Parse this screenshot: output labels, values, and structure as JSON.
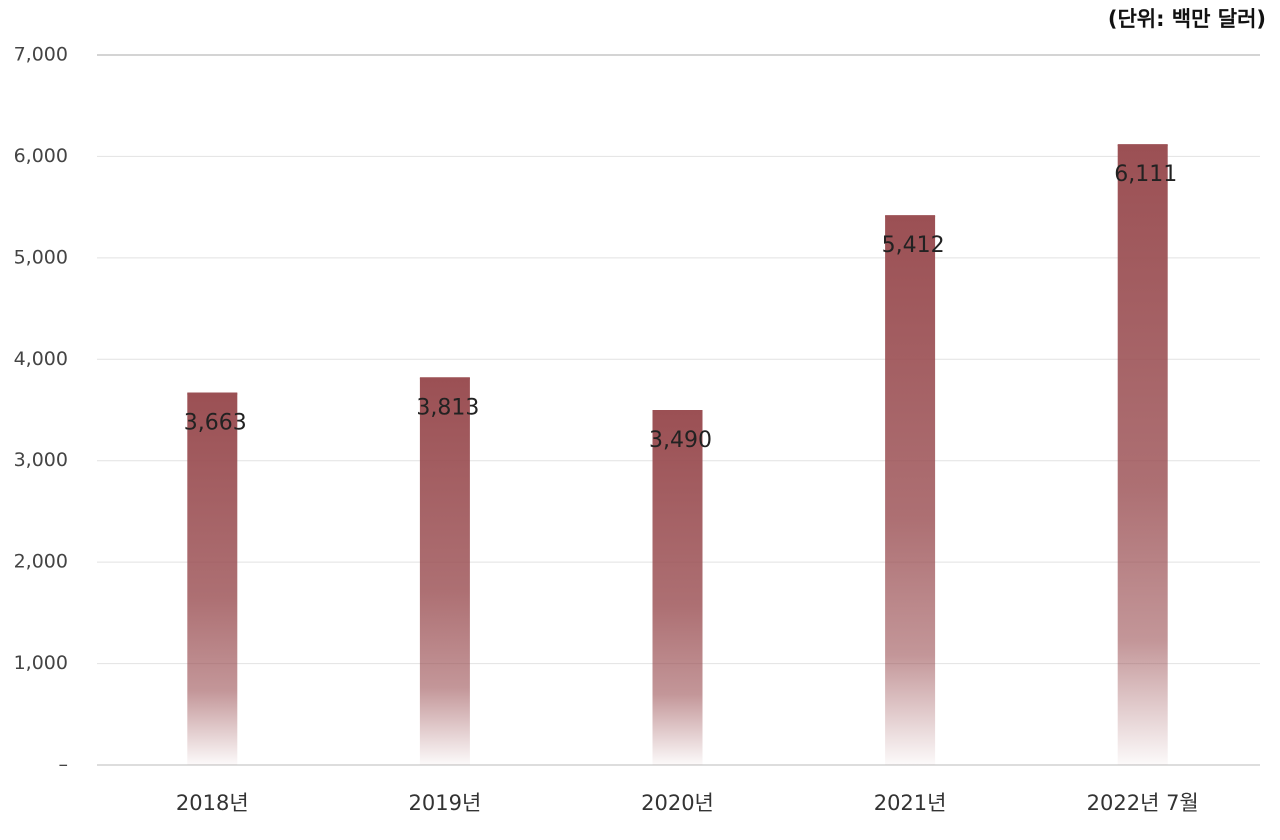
{
  "chart_data": {
    "type": "bar",
    "unit_label": "(단위: 백만 달러)",
    "categories": [
      "2018년",
      "2019년",
      "2020년",
      "2021년",
      "2022년 7월"
    ],
    "values": [
      3663,
      3813,
      3490,
      5412,
      6111
    ],
    "value_labels": [
      "3,663",
      "3,813",
      "3,490",
      "5,412",
      "6,111"
    ],
    "color": "#9b5054",
    "ylim": [
      0,
      7000
    ],
    "yticks": [
      {
        "value": 0,
        "label": "–"
      },
      {
        "value": 1000,
        "label": "1,000"
      },
      {
        "value": 2000,
        "label": "2,000"
      },
      {
        "value": 3000,
        "label": "3,000"
      },
      {
        "value": 4000,
        "label": "4,000"
      },
      {
        "value": 5000,
        "label": "5,000"
      },
      {
        "value": 6000,
        "label": "6,000"
      },
      {
        "value": 7000,
        "label": "7,000"
      }
    ],
    "grid": true
  }
}
